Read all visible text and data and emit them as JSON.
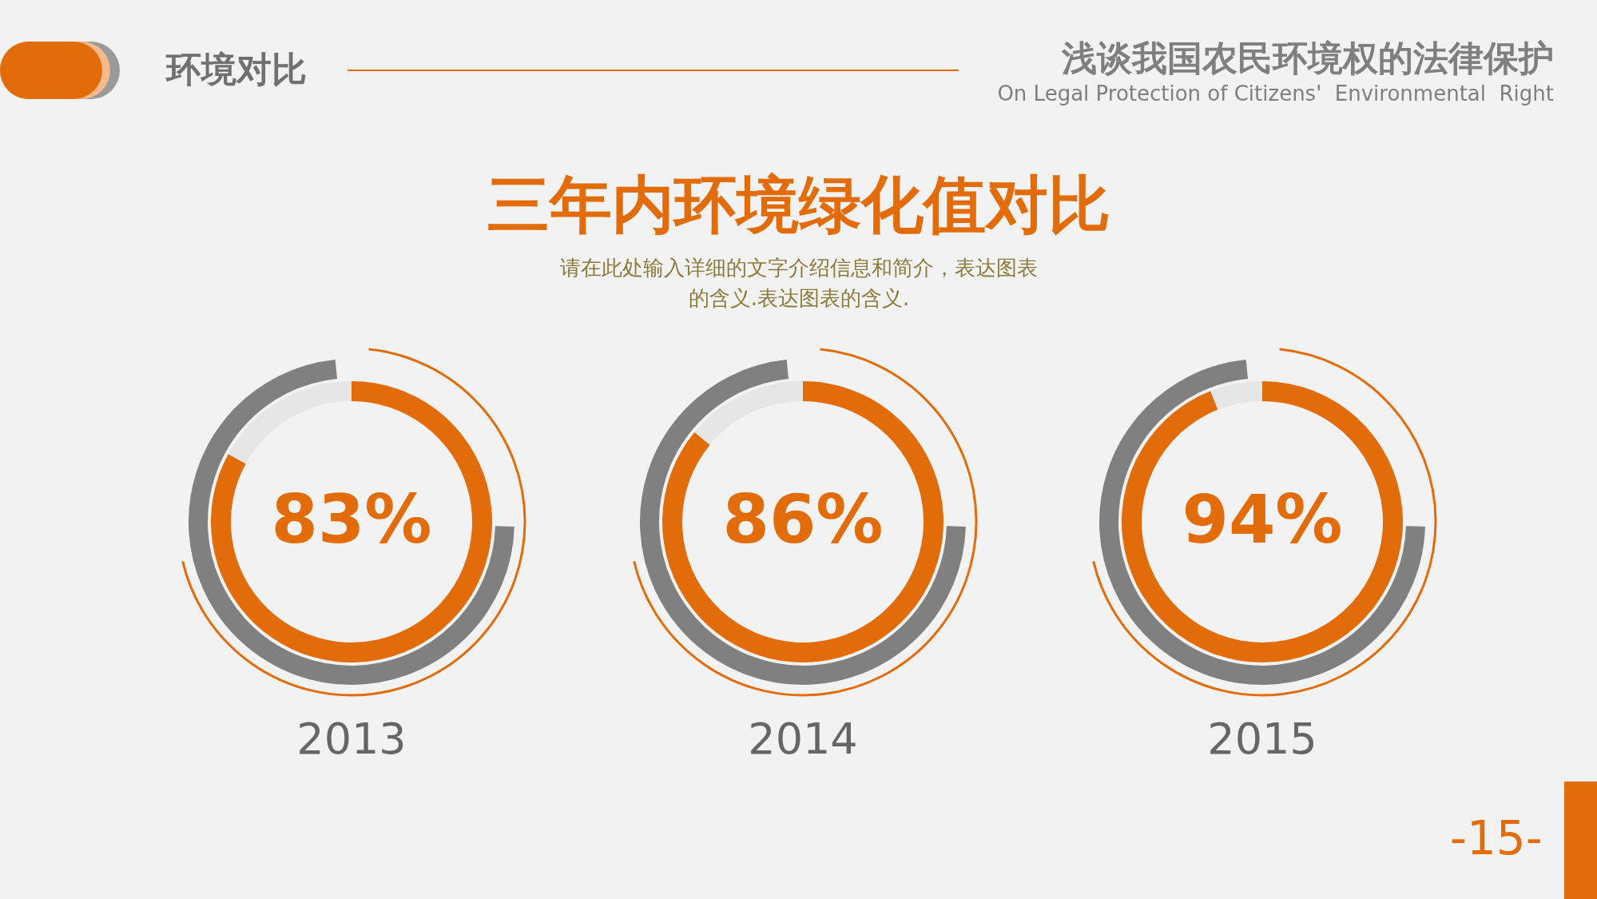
{
  "chart_data": [
    {
      "type": "other",
      "title": "三年内环境绿化值对比",
      "subtitle": "请在此处输入详细的文字介绍信息和简介，表达图表的含义.表达图表的含义.",
      "annotations": [
        "环境对比",
        "浅谈我国农民环境权的法律保护",
        "On Legal Protection of Citizens'  Environmental  Right",
        "-15-"
      ]
    },
    {
      "type": "donut",
      "categories": [
        null,
        null
      ],
      "values": [
        83,
        17
      ],
      "colors": [
        "#e36c0a",
        "#e6e6e6"
      ],
      "value_labels": [
        "83%",
        null
      ],
      "xlabel": "2013"
    },
    {
      "type": "donut",
      "categories": [
        null,
        null
      ],
      "values": [
        86,
        14
      ],
      "colors": [
        "#e36c0a",
        "#e6e6e6"
      ],
      "value_labels": [
        "86%",
        null
      ],
      "xlabel": "2014"
    },
    {
      "type": "donut",
      "categories": [
        null,
        null
      ],
      "values": [
        94,
        6
      ],
      "colors": [
        "#e36c0a",
        "#e6e6e6"
      ],
      "value_labels": [
        "94%",
        null
      ],
      "xlabel": "2015"
    }
  ]
}
